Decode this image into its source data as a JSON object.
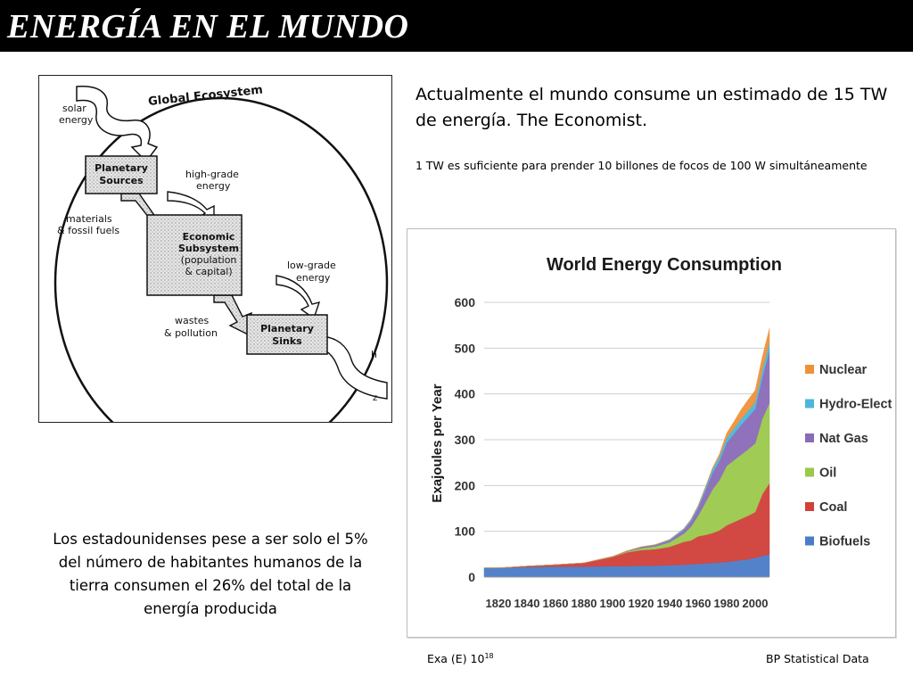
{
  "title": "ENERGÍA EN EL MUNDO",
  "lead_text": "Actualmente el mundo consume un estimado de 15 TW de energía. The Economist.",
  "note_text": "1 TW es suficiente para prender 10 billones de focos de 100 W simultáneamente",
  "us_stat_text": "Los estadounidenses pese a ser solo el 5% del número de habitantes humanos de la tierra consumen el 26% del total de la energía producida",
  "footer": {
    "exa_prefix": "Exa (E) 10",
    "exa_exponent": "18",
    "source": "BP Statistical Data"
  },
  "diagram": {
    "title": "Global Ecosystem",
    "solar_1": "solar",
    "solar_2": "energy",
    "sources_1": "Planetary",
    "sources_2": "Sources",
    "high_1": "high-grade",
    "high_2": "energy",
    "materials_1": "materials",
    "materials_2": "& fossil fuels",
    "econ_1": "Economic",
    "econ_2": "Subsystem",
    "econ_3": "(population",
    "econ_4": "& capital)",
    "low_1": "low-grade",
    "low_2": "energy",
    "wastes_1": "wastes",
    "wastes_2": "& pollution",
    "sinks_1": "Planetary",
    "sinks_2": "Sinks",
    "h_mark": "h",
    "z_mark": "z"
  },
  "colors": {
    "Biofuels": "#4a7cc9",
    "Coal": "#d0403a",
    "Oil": "#9bc94b",
    "Nat Gas": "#8a6bb8",
    "Hydro-Elect": "#4bb7da",
    "Nuclear": "#f0913a"
  },
  "chart_data": {
    "type": "area",
    "stacked": true,
    "title": "World Energy Consumption",
    "xlabel": "",
    "ylabel": "Exajoules per Year",
    "xlim": [
      1810,
      2010
    ],
    "ylim": [
      0,
      600
    ],
    "yticks": [
      0,
      100,
      200,
      300,
      400,
      500,
      600
    ],
    "xticks": [
      1820,
      1840,
      1860,
      1880,
      1900,
      1920,
      1940,
      1960,
      1980,
      2000
    ],
    "grid": true,
    "legend_position": "right",
    "x": [
      1810,
      1820,
      1840,
      1860,
      1880,
      1900,
      1910,
      1920,
      1930,
      1940,
      1950,
      1955,
      1960,
      1965,
      1970,
      1975,
      1980,
      1985,
      1990,
      1995,
      2000,
      2005,
      2010
    ],
    "series": [
      {
        "name": "Biofuels",
        "values": [
          20,
          20,
          22,
          23,
          23,
          24,
          24,
          25,
          25,
          26,
          27,
          28,
          29,
          30,
          31,
          32,
          33,
          35,
          37,
          39,
          42,
          46,
          50
        ]
      },
      {
        "name": "Coal",
        "values": [
          0,
          0,
          2,
          4,
          8,
          20,
          30,
          34,
          36,
          40,
          50,
          52,
          60,
          62,
          65,
          70,
          80,
          85,
          90,
          95,
          100,
          135,
          155
        ]
      },
      {
        "name": "Oil",
        "values": [
          0,
          0,
          0,
          0,
          0,
          1,
          2,
          4,
          6,
          10,
          18,
          30,
          45,
          70,
          95,
          110,
          130,
          135,
          140,
          145,
          150,
          165,
          175
        ]
      },
      {
        "name": "Nat Gas",
        "values": [
          0,
          0,
          0,
          0,
          0,
          0,
          1,
          2,
          3,
          4,
          8,
          12,
          17,
          26,
          36,
          42,
          50,
          57,
          65,
          70,
          75,
          90,
          115
        ]
      },
      {
        "name": "Hydro-Elect",
        "values": [
          0,
          0,
          0,
          0,
          0,
          0,
          0,
          1,
          1,
          2,
          3,
          4,
          5,
          7,
          9,
          10,
          11,
          12,
          13,
          14,
          15,
          17,
          18
        ]
      },
      {
        "name": "Nuclear",
        "values": [
          0,
          0,
          0,
          0,
          0,
          0,
          0,
          0,
          0,
          0,
          0,
          0,
          0,
          1,
          2,
          5,
          10,
          15,
          20,
          24,
          26,
          28,
          30
        ]
      }
    ]
  }
}
